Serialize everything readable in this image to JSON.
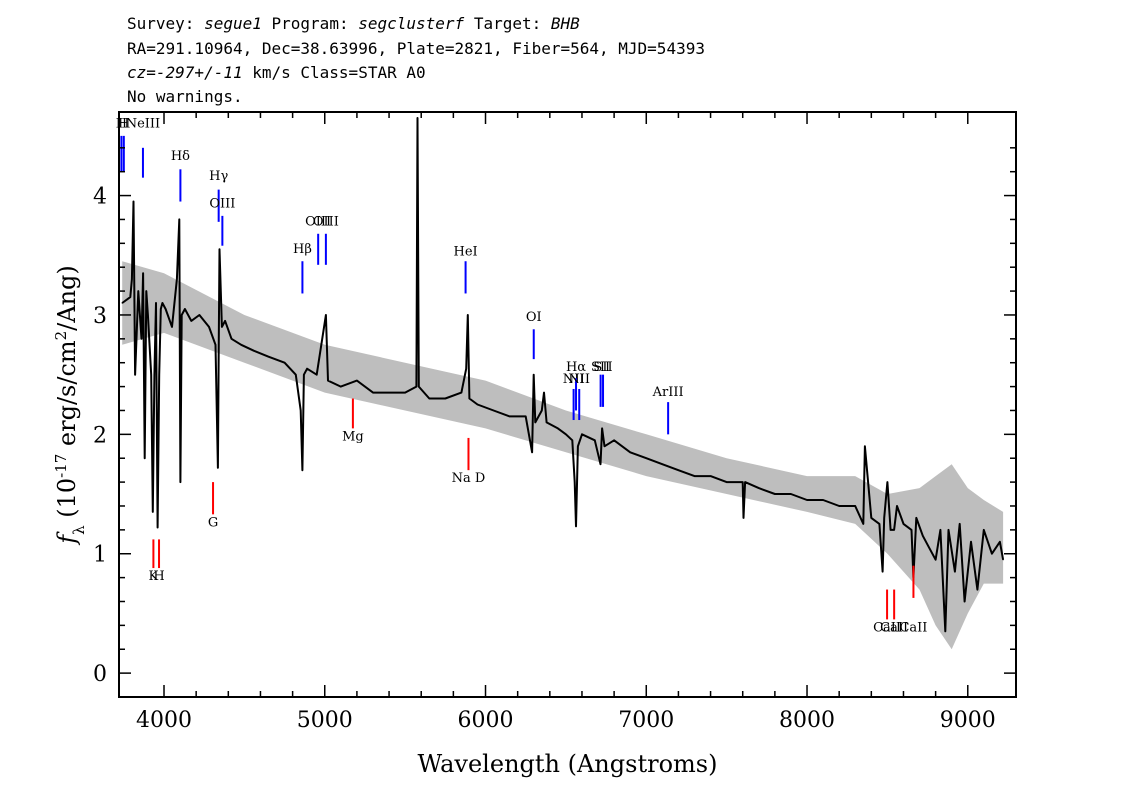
{
  "header": {
    "survey_label": "Survey:",
    "survey": "segue1",
    "program_label": "Program:",
    "program": "segclusterf",
    "target_label": "Target:",
    "target": "BHB",
    "line2": "RA=291.10964, Dec=38.63996, Plate=2821, Fiber=564, MJD=54393",
    "cz": "cz=-297+/-11",
    "line3_rest": " km/s Class=STAR A0",
    "line4": "No warnings."
  },
  "chart_data": {
    "type": "line",
    "title": "",
    "xlabel": "Wavelength (Angstroms)",
    "ylabel": "fλ (10^-17 erg/s/cm^2/Ang)",
    "xlim": [
      3720,
      9300
    ],
    "ylim": [
      -0.2,
      4.7
    ],
    "xticks": [
      4000,
      5000,
      6000,
      7000,
      8000,
      9000
    ],
    "yticks": [
      0,
      1,
      2,
      3,
      4
    ],
    "grid": false,
    "series": [
      {
        "role": "flux",
        "color": "#000000",
        "x": [
          3740,
          3790,
          3800,
          3810,
          3820,
          3840,
          3860,
          3870,
          3880,
          3890,
          3900,
          3920,
          3930,
          3940,
          3950,
          3960,
          3970,
          3980,
          3990,
          4010,
          4050,
          4080,
          4095,
          4102,
          4110,
          4130,
          4170,
          4220,
          4280,
          4320,
          4335,
          4340,
          4345,
          4360,
          4380,
          4420,
          4480,
          4560,
          4650,
          4750,
          4820,
          4850,
          4861,
          4870,
          4890,
          4950,
          5007,
          5020,
          5100,
          5200,
          5300,
          5400,
          5500,
          5570,
          5577,
          5585,
          5650,
          5750,
          5850,
          5880,
          5890,
          5900,
          5950,
          6050,
          6150,
          6250,
          6290,
          6300,
          6310,
          6350,
          6364,
          6380,
          6450,
          6500,
          6540,
          6555,
          6563,
          6575,
          6600,
          6680,
          6715,
          6725,
          6740,
          6800,
          6900,
          7000,
          7100,
          7200,
          7300,
          7400,
          7500,
          7600,
          7605,
          7615,
          7700,
          7800,
          7900,
          8000,
          8100,
          8200,
          8300,
          8350,
          8360,
          8400,
          8450,
          8470,
          8480,
          8500,
          8520,
          8542,
          8560,
          8600,
          8650,
          8662,
          8680,
          8720,
          8760,
          8800,
          8830,
          8860,
          8880,
          8920,
          8950,
          8980,
          9020,
          9060,
          9100,
          9150,
          9200,
          9220
        ],
        "y": [
          3.1,
          3.15,
          3.3,
          3.95,
          2.5,
          3.2,
          2.8,
          3.35,
          1.8,
          3.2,
          3.0,
          2.5,
          1.35,
          2.5,
          3.1,
          1.22,
          2.5,
          3.05,
          3.1,
          3.05,
          2.9,
          3.3,
          3.8,
          1.6,
          3.0,
          3.05,
          2.95,
          3.0,
          2.9,
          2.75,
          1.72,
          2.7,
          3.55,
          2.9,
          2.95,
          2.8,
          2.75,
          2.7,
          2.65,
          2.6,
          2.5,
          2.2,
          1.7,
          2.5,
          2.55,
          2.5,
          3.0,
          2.45,
          2.4,
          2.45,
          2.35,
          2.35,
          2.35,
          2.4,
          4.65,
          2.4,
          2.3,
          2.3,
          2.35,
          2.55,
          3.0,
          2.3,
          2.25,
          2.2,
          2.15,
          2.15,
          1.85,
          2.5,
          2.1,
          2.2,
          2.35,
          2.1,
          2.05,
          2.0,
          1.95,
          1.6,
          1.23,
          1.9,
          2.0,
          1.95,
          1.75,
          2.05,
          1.9,
          1.95,
          1.85,
          1.8,
          1.75,
          1.7,
          1.65,
          1.65,
          1.6,
          1.6,
          1.3,
          1.6,
          1.55,
          1.5,
          1.5,
          1.45,
          1.45,
          1.4,
          1.4,
          1.25,
          1.9,
          1.3,
          1.25,
          0.85,
          1.3,
          1.6,
          1.2,
          1.2,
          1.4,
          1.25,
          1.2,
          0.8,
          1.3,
          1.15,
          1.05,
          0.95,
          1.2,
          0.35,
          1.2,
          0.85,
          1.25,
          0.6,
          1.1,
          0.7,
          1.2,
          1.0,
          1.1,
          0.95
        ]
      },
      {
        "role": "error band",
        "color": "#bebebe",
        "x": [
          3740,
          4000,
          4500,
          5000,
          5500,
          6000,
          6500,
          7000,
          7500,
          8000,
          8300,
          8500,
          8700,
          8800,
          8900,
          9000,
          9100,
          9220
        ],
        "y_low": [
          2.75,
          2.85,
          2.6,
          2.35,
          2.2,
          2.05,
          1.85,
          1.65,
          1.5,
          1.35,
          1.25,
          1.0,
          0.7,
          0.4,
          0.2,
          0.5,
          0.75,
          0.75
        ],
        "y_high": [
          3.45,
          3.35,
          3.0,
          2.75,
          2.6,
          2.45,
          2.2,
          2.0,
          1.8,
          1.65,
          1.65,
          1.5,
          1.55,
          1.65,
          1.75,
          1.55,
          1.45,
          1.35
        ]
      }
    ],
    "emission_lines": [
      {
        "label": "H",
        "color": "#0000ff",
        "x": 3735,
        "y1": 4.2,
        "y2": 4.5,
        "ly": 4.57
      },
      {
        "label": "H",
        "color": "#0000ff",
        "x": 3750,
        "y1": 4.2,
        "y2": 4.5,
        "ly": 4.57
      },
      {
        "label": "NeIII",
        "color": "#0000ff",
        "x": 3869,
        "y1": 4.15,
        "y2": 4.4,
        "ly": 4.57
      },
      {
        "label": "Hδ",
        "color": "#0000ff",
        "x": 4102,
        "y1": 3.95,
        "y2": 4.22,
        "ly": 4.3
      },
      {
        "label": "Hγ",
        "color": "#0000ff",
        "x": 4340,
        "y1": 3.78,
        "y2": 4.05,
        "ly": 4.13
      },
      {
        "label": "OIII",
        "color": "#0000ff",
        "x": 4363,
        "y1": 3.58,
        "y2": 3.83,
        "ly": 3.9
      },
      {
        "label": "Hβ",
        "color": "#0000ff",
        "x": 4861,
        "y1": 3.18,
        "y2": 3.45,
        "ly": 3.52
      },
      {
        "label": "OIII",
        "color": "#0000ff",
        "x": 4959,
        "y1": 3.42,
        "y2": 3.68,
        "ly": 3.75
      },
      {
        "label": "OIII",
        "color": "#0000ff",
        "x": 5007,
        "y1": 3.42,
        "y2": 3.68,
        "ly": 3.75
      },
      {
        "label": "HeI",
        "color": "#0000ff",
        "x": 5876,
        "y1": 3.18,
        "y2": 3.45,
        "ly": 3.5
      },
      {
        "label": "OI",
        "color": "#0000ff",
        "x": 6300,
        "y1": 2.63,
        "y2": 2.88,
        "ly": 2.95
      },
      {
        "label": "NII",
        "color": "#0000ff",
        "x": 6548,
        "y1": 2.12,
        "y2": 2.38,
        "ly": 2.43
      },
      {
        "label": "Hα",
        "color": "#0000ff",
        "x": 6563,
        "y1": 2.2,
        "y2": 2.47,
        "ly": 2.53
      },
      {
        "label": "NII",
        "color": "#0000ff",
        "x": 6583,
        "y1": 2.12,
        "y2": 2.38,
        "ly": 2.43
      },
      {
        "label": "SII",
        "color": "#0000ff",
        "x": 6716,
        "y1": 2.23,
        "y2": 2.5,
        "ly": 2.53
      },
      {
        "label": "SII",
        "color": "#0000ff",
        "x": 6731,
        "y1": 2.23,
        "y2": 2.5,
        "ly": 2.53
      },
      {
        "label": "ArIII",
        "color": "#0000ff",
        "x": 7136,
        "y1": 2.0,
        "y2": 2.27,
        "ly": 2.32
      }
    ],
    "absorption_lines": [
      {
        "label": "K",
        "color": "#ff0000",
        "x": 3934,
        "y1": 0.88,
        "y2": 1.12,
        "ly": 0.78
      },
      {
        "label": "H",
        "color": "#ff0000",
        "x": 3969,
        "y1": 0.88,
        "y2": 1.12,
        "ly": 0.78
      },
      {
        "label": "G",
        "color": "#ff0000",
        "x": 4305,
        "y1": 1.33,
        "y2": 1.6,
        "ly": 1.23
      },
      {
        "label": "Mg",
        "color": "#ff0000",
        "x": 5175,
        "y1": 2.05,
        "y2": 2.3,
        "ly": 1.95
      },
      {
        "label": "Na D",
        "color": "#ff0000",
        "x": 5894,
        "y1": 1.7,
        "y2": 1.97,
        "ly": 1.6
      },
      {
        "label": "CaII",
        "color": "#ff0000",
        "x": 8498,
        "y1": 0.45,
        "y2": 0.7,
        "ly": 0.35
      },
      {
        "label": "CaII",
        "color": "#ff0000",
        "x": 8542,
        "y1": 0.45,
        "y2": 0.7,
        "ly": 0.35
      },
      {
        "label": "CaII",
        "color": "#ff0000",
        "x": 8662,
        "y1": 0.63,
        "y2": 0.9,
        "ly": 0.35
      }
    ]
  }
}
